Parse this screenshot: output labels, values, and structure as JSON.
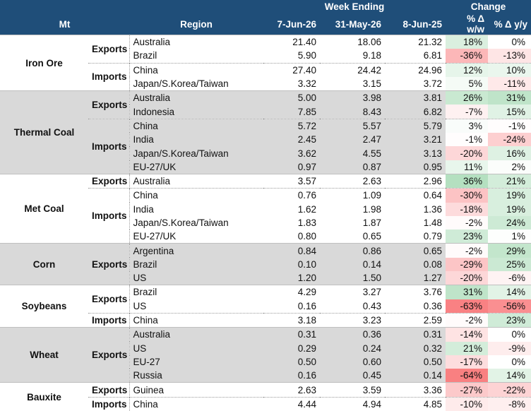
{
  "header": {
    "week_ending": "Week Ending",
    "change": "Change",
    "col_mt": "Mt",
    "col_region": "Region",
    "col_week1": "7-Jun-26",
    "col_week2": "31-May-26",
    "col_week3": "8-Jun-25",
    "col_ww": "% Δ w/w",
    "col_yy": "% Δ y/y"
  },
  "colors": {
    "header_bg": "#1f4e79",
    "band_grey": "#d9d9d9",
    "positive": "#63be7b",
    "negative": "#f8696b"
  },
  "groups": [
    {
      "commodity": "Iron Ore",
      "shade": "white",
      "flows": [
        {
          "type": "Exports",
          "rows": [
            {
              "region": "Australia",
              "w1": "21.40",
              "w2": "18.06",
              "w3": "21.32",
              "ww": "18%",
              "yy": "0%"
            },
            {
              "region": "Brazil",
              "w1": "5.90",
              "w2": "9.18",
              "w3": "6.81",
              "ww": "-36%",
              "yy": "-13%"
            }
          ]
        },
        {
          "type": "Imports",
          "rows": [
            {
              "region": "China",
              "w1": "27.40",
              "w2": "24.42",
              "w3": "24.96",
              "ww": "12%",
              "yy": "10%"
            },
            {
              "region": "Japan/S.Korea/Taiwan",
              "w1": "3.32",
              "w2": "3.15",
              "w3": "3.72",
              "ww": "5%",
              "yy": "-11%"
            }
          ]
        }
      ]
    },
    {
      "commodity": "Thermal Coal",
      "shade": "grey",
      "flows": [
        {
          "type": "Exports",
          "rows": [
            {
              "region": "Australia",
              "w1": "5.00",
              "w2": "3.98",
              "w3": "3.81",
              "ww": "26%",
              "yy": "31%"
            },
            {
              "region": "Indonesia",
              "w1": "7.85",
              "w2": "8.43",
              "w3": "6.82",
              "ww": "-7%",
              "yy": "15%"
            }
          ]
        },
        {
          "type": "Imports",
          "rows": [
            {
              "region": "China",
              "w1": "5.72",
              "w2": "5.57",
              "w3": "5.79",
              "ww": "3%",
              "yy": "-1%"
            },
            {
              "region": "India",
              "w1": "2.45",
              "w2": "2.47",
              "w3": "3.21",
              "ww": "-1%",
              "yy": "-24%"
            },
            {
              "region": "Japan/S.Korea/Taiwan",
              "w1": "3.62",
              "w2": "4.55",
              "w3": "3.13",
              "ww": "-20%",
              "yy": "16%"
            },
            {
              "region": "EU-27/UK",
              "w1": "0.97",
              "w2": "0.87",
              "w3": "0.95",
              "ww": "11%",
              "yy": "2%"
            }
          ]
        }
      ]
    },
    {
      "commodity": "Met Coal",
      "shade": "white",
      "flows": [
        {
          "type": "Exports",
          "rows": [
            {
              "region": "Australia",
              "w1": "3.57",
              "w2": "2.63",
              "w3": "2.96",
              "ww": "36%",
              "yy": "21%"
            }
          ]
        },
        {
          "type": "Imports",
          "rows": [
            {
              "region": "China",
              "w1": "0.76",
              "w2": "1.09",
              "w3": "0.64",
              "ww": "-30%",
              "yy": "19%"
            },
            {
              "region": "India",
              "w1": "1.62",
              "w2": "1.98",
              "w3": "1.36",
              "ww": "-18%",
              "yy": "19%"
            },
            {
              "region": "Japan/S.Korea/Taiwan",
              "w1": "1.83",
              "w2": "1.87",
              "w3": "1.48",
              "ww": "-2%",
              "yy": "24%"
            },
            {
              "region": "EU-27/UK",
              "w1": "0.80",
              "w2": "0.65",
              "w3": "0.79",
              "ww": "23%",
              "yy": "1%"
            }
          ]
        }
      ]
    },
    {
      "commodity": "Corn",
      "shade": "grey",
      "flows": [
        {
          "type": "Exports",
          "rows": [
            {
              "region": "Argentina",
              "w1": "0.84",
              "w2": "0.86",
              "w3": "0.65",
              "ww": "-2%",
              "yy": "29%"
            },
            {
              "region": "Brazil",
              "w1": "0.10",
              "w2": "0.14",
              "w3": "0.08",
              "ww": "-29%",
              "yy": "25%"
            },
            {
              "region": "US",
              "w1": "1.20",
              "w2": "1.50",
              "w3": "1.27",
              "ww": "-20%",
              "yy": "-6%"
            }
          ]
        }
      ]
    },
    {
      "commodity": "Soybeans",
      "shade": "white",
      "flows": [
        {
          "type": "Exports",
          "rows": [
            {
              "region": "Brazil",
              "w1": "4.29",
              "w2": "3.27",
              "w3": "3.76",
              "ww": "31%",
              "yy": "14%"
            },
            {
              "region": "US",
              "w1": "0.16",
              "w2": "0.43",
              "w3": "0.36",
              "ww": "-63%",
              "yy": "-56%"
            }
          ]
        },
        {
          "type": "Imports",
          "rows": [
            {
              "region": "China",
              "w1": "3.18",
              "w2": "3.23",
              "w3": "2.59",
              "ww": "-2%",
              "yy": "23%"
            }
          ]
        }
      ]
    },
    {
      "commodity": "Wheat",
      "shade": "grey",
      "flows": [
        {
          "type": "Exports",
          "rows": [
            {
              "region": "Australia",
              "w1": "0.31",
              "w2": "0.36",
              "w3": "0.31",
              "ww": "-14%",
              "yy": "0%"
            },
            {
              "region": "US",
              "w1": "0.29",
              "w2": "0.24",
              "w3": "0.32",
              "ww": "21%",
              "yy": "-9%"
            },
            {
              "region": "EU-27",
              "w1": "0.50",
              "w2": "0.60",
              "w3": "0.50",
              "ww": "-17%",
              "yy": "0%"
            },
            {
              "region": "Russia",
              "w1": "0.16",
              "w2": "0.45",
              "w3": "0.14",
              "ww": "-64%",
              "yy": "14%"
            }
          ]
        }
      ]
    },
    {
      "commodity": "Bauxite",
      "shade": "white",
      "flows": [
        {
          "type": "Exports",
          "rows": [
            {
              "region": "Guinea",
              "w1": "2.63",
              "w2": "3.59",
              "w3": "3.36",
              "ww": "-27%",
              "yy": "-22%"
            }
          ]
        },
        {
          "type": "Imports",
          "rows": [
            {
              "region": "China",
              "w1": "4.44",
              "w2": "4.94",
              "w3": "4.85",
              "ww": "-10%",
              "yy": "-8%"
            }
          ]
        }
      ]
    }
  ]
}
